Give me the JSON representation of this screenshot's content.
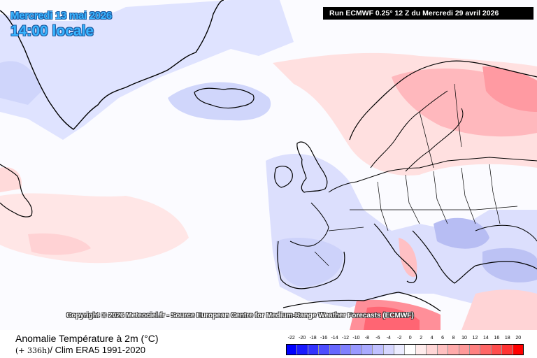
{
  "header": {
    "date": "Mercredi 13 mai 2026",
    "time": "14:00 locale",
    "run": "Run ECMWF 0.25° 12 Z du Mercredi 29 avril 2026"
  },
  "copyright": "Copyright © 2026 Meteociel.fr - Source European Centre for Medium-Range Weather Forecasts (ECMWF)",
  "footer": {
    "title": "Anomalie Température à 2m (°C)",
    "step": "(+ 336h)",
    "clim": "/ Clim ERA5 1991-2020"
  },
  "legend": {
    "labels": [
      "-22",
      "-20",
      "-18",
      "-16",
      "-14",
      "-12",
      "-10",
      "-8",
      "-6",
      "-4",
      "-2",
      "0",
      "2",
      "4",
      "6",
      "8",
      "10",
      "12",
      "14",
      "16",
      "18",
      "20"
    ],
    "colors": [
      "#0000ff",
      "#1a1aff",
      "#3333ff",
      "#4d4dff",
      "#6666ff",
      "#8080ff",
      "#9999ff",
      "#aaaaff",
      "#c0c0ff",
      "#d6d6ff",
      "#ececff",
      "#ffffff",
      "#ffecec",
      "#ffd6d6",
      "#ffc0c0",
      "#ffaaaa",
      "#ff9999",
      "#ff8080",
      "#ff6666",
      "#ff4d4d",
      "#ff3333",
      "#ff0000"
    ]
  },
  "colors": {
    "cold_light": "#d6dcff",
    "cold_mid": "#b9c0f5",
    "warm_light": "#ffdede",
    "warm_mid": "#ffb4b8",
    "warm_strong": "#ff6e7a",
    "coastline": "#000000"
  }
}
